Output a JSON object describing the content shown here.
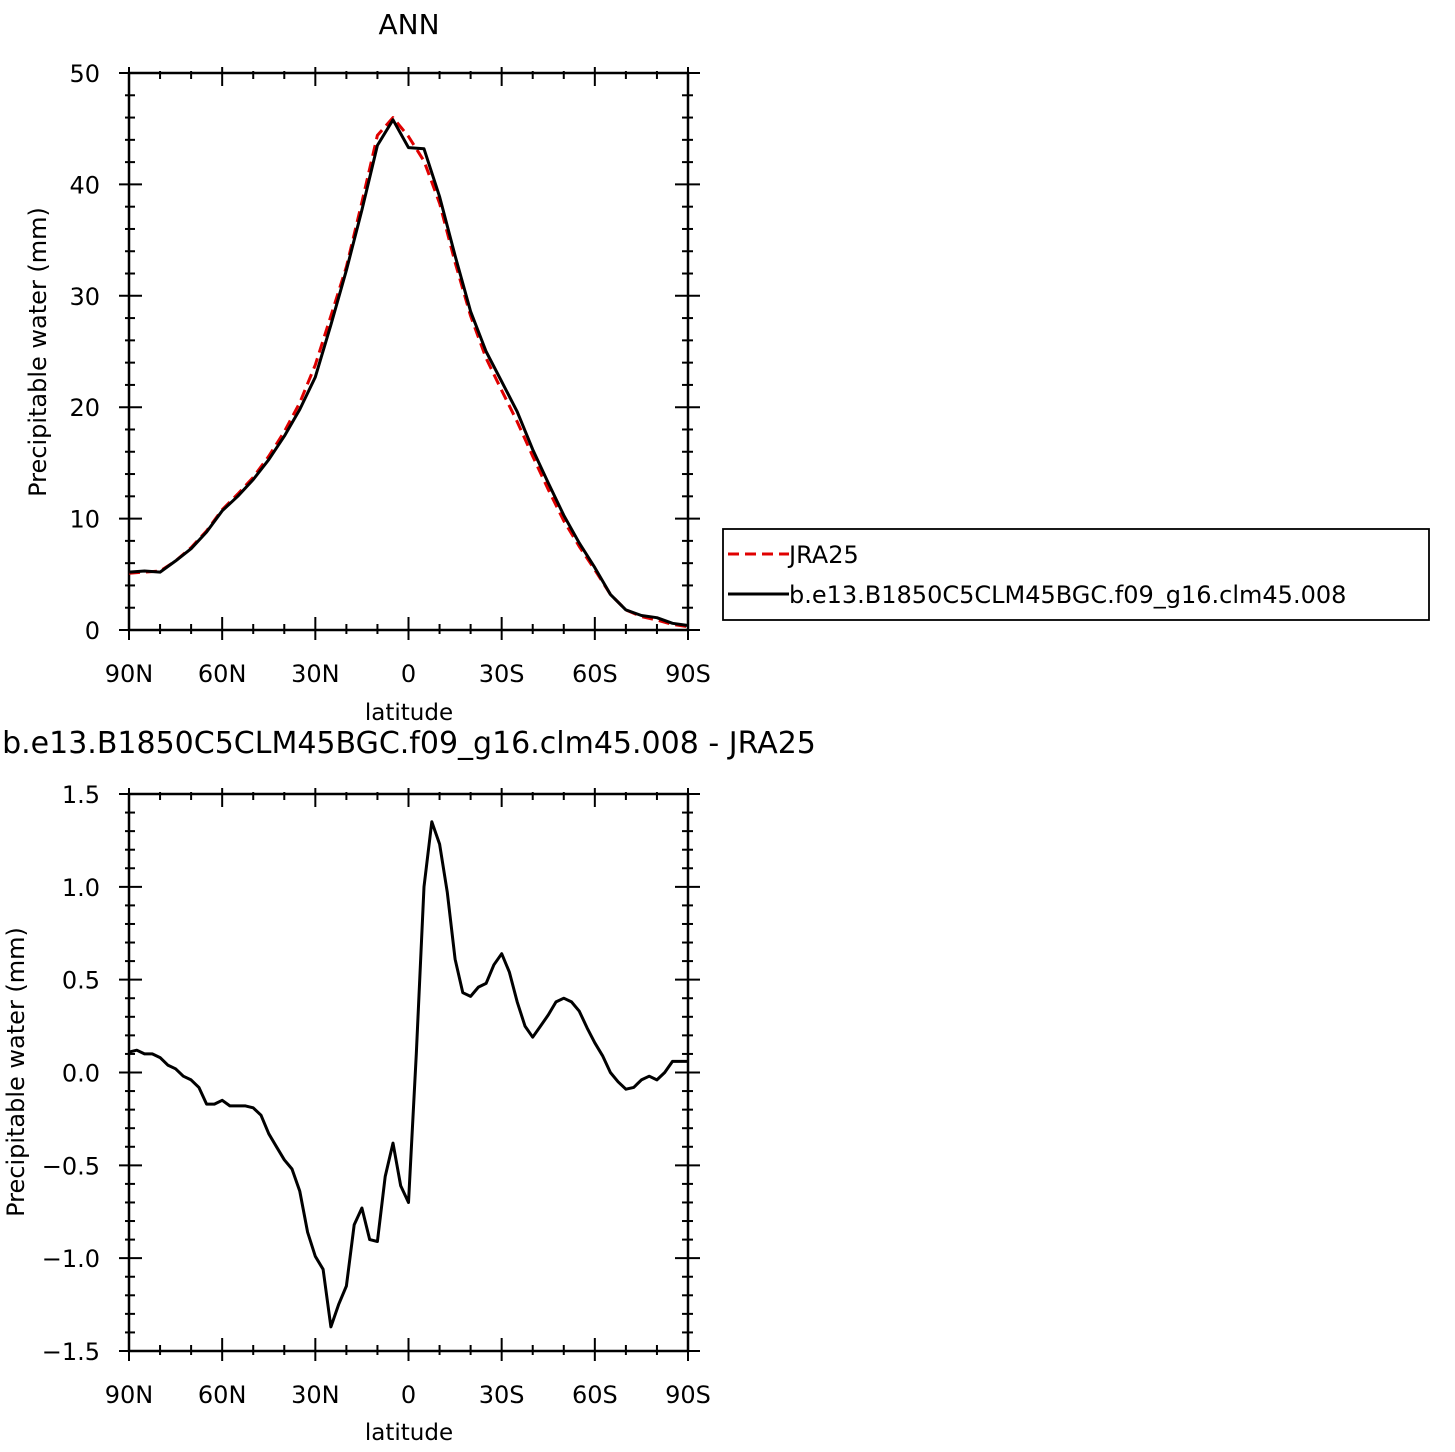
{
  "chart_data": [
    {
      "type": "line",
      "title": "ANN",
      "xlabel": "latitude",
      "ylabel": "Precipitable water (mm)",
      "xlim": [
        90,
        -90
      ],
      "ylim": [
        0,
        50
      ],
      "x_ticks": [
        90,
        60,
        30,
        0,
        -30,
        -60,
        -90
      ],
      "x_tick_labels": [
        "90N",
        "60N",
        "30N",
        "0",
        "30S",
        "60S",
        "90S"
      ],
      "y_ticks": [
        0,
        10,
        20,
        30,
        40,
        50
      ],
      "y_tick_labels": [
        "0",
        "10",
        "20",
        "30",
        "40",
        "50"
      ],
      "legend": "right",
      "series": [
        {
          "name": "JRA25",
          "color": "#e00000",
          "dash": "dashed",
          "x": [
            90,
            85,
            80,
            75,
            70,
            65,
            60,
            55,
            50,
            45,
            40,
            35,
            30,
            25,
            20,
            15,
            10,
            5,
            0,
            -5,
            -10,
            -15,
            -20,
            -25,
            -30,
            -35,
            -40,
            -45,
            -50,
            -55,
            -60,
            -65,
            -70,
            -75,
            -80,
            -85,
            -90
          ],
          "y": [
            5.1,
            5.2,
            5.3,
            6.2,
            7.4,
            8.9,
            10.8,
            12.2,
            13.7,
            15.6,
            17.8,
            20.4,
            23.8,
            28.2,
            32.6,
            38.4,
            44.4,
            46.0,
            44.3,
            42.1,
            38.3,
            33.0,
            28.2,
            24.4,
            21.5,
            18.7,
            15.6,
            12.6,
            9.8,
            7.5,
            5.4,
            3.2,
            1.8,
            1.2,
            0.9,
            0.5,
            0.3
          ]
        },
        {
          "name": "b.e13.B1850C5CLM45BGC.f09_g16.clm45.008",
          "color": "#000000",
          "dash": "solid",
          "x": [
            90,
            85,
            80,
            75,
            70,
            65,
            60,
            55,
            50,
            45,
            40,
            35,
            30,
            25,
            20,
            15,
            10,
            5,
            0,
            -5,
            -10,
            -15,
            -20,
            -25,
            -30,
            -35,
            -40,
            -45,
            -50,
            -55,
            -60,
            -65,
            -70,
            -75,
            -80,
            -85,
            -90
          ],
          "y": [
            5.2,
            5.3,
            5.2,
            6.2,
            7.3,
            8.8,
            10.7,
            12.0,
            13.5,
            15.3,
            17.4,
            19.8,
            22.7,
            27.4,
            32.3,
            37.7,
            43.5,
            45.8,
            43.3,
            43.2,
            38.9,
            33.6,
            28.6,
            25.0,
            22.3,
            19.6,
            16.2,
            13.2,
            10.3,
            7.8,
            5.6,
            3.2,
            1.8,
            1.3,
            1.1,
            0.6,
            0.4
          ]
        }
      ]
    },
    {
      "type": "line",
      "title": "b.e13.B1850C5CLM45BGC.f09_g16.clm45.008 - JRA25",
      "xlabel": "latitude",
      "ylabel": "Precipitable water (mm)",
      "xlim": [
        90,
        -90
      ],
      "ylim": [
        -1.5,
        1.5
      ],
      "x_ticks": [
        90,
        60,
        30,
        0,
        -30,
        -60,
        -90
      ],
      "x_tick_labels": [
        "90N",
        "60N",
        "30N",
        "0",
        "30S",
        "60S",
        "90S"
      ],
      "y_ticks": [
        -1.5,
        -1.0,
        -0.5,
        0.0,
        0.5,
        1.0,
        1.5
      ],
      "y_tick_labels": [
        "−1.5",
        "−1.0",
        "−0.5",
        "0.0",
        "0.5",
        "1.0",
        "1.5"
      ],
      "series": [
        {
          "color": "#000000",
          "dash": "solid",
          "x": [
            90,
            87.5,
            85,
            82.5,
            80,
            77.5,
            75,
            72.5,
            70,
            67.5,
            65,
            62.5,
            60,
            57.5,
            55,
            52.5,
            50,
            47.5,
            45,
            42.5,
            40,
            37.5,
            35,
            32.5,
            30,
            27.5,
            25,
            22.5,
            20,
            17.5,
            15,
            12.5,
            10,
            7.5,
            5,
            2.5,
            0,
            -2.5,
            -5,
            -7.5,
            -10,
            -12.5,
            -15,
            -17.5,
            -20,
            -22.5,
            -25,
            -27.5,
            -30,
            -32.5,
            -35,
            -37.5,
            -40,
            -42.5,
            -45,
            -47.5,
            -50,
            -52.5,
            -55,
            -57.5,
            -60,
            -62.5,
            -65,
            -67.5,
            -70,
            -72.5,
            -75,
            -77.5,
            -80,
            -82.5,
            -85,
            -87.5,
            -90
          ],
          "y": [
            0.11,
            0.12,
            0.1,
            0.1,
            0.08,
            0.04,
            0.02,
            -0.02,
            -0.04,
            -0.08,
            -0.17,
            -0.17,
            -0.15,
            -0.18,
            -0.18,
            -0.18,
            -0.19,
            -0.23,
            -0.33,
            -0.4,
            -0.47,
            -0.52,
            -0.64,
            -0.86,
            -0.99,
            -1.06,
            -1.37,
            -1.25,
            -1.15,
            -0.82,
            -0.73,
            -0.9,
            -0.91,
            -0.56,
            -0.38,
            -0.61,
            -0.7,
            0.1,
            1.0,
            1.35,
            1.23,
            0.97,
            0.61,
            0.43,
            0.41,
            0.46,
            0.48,
            0.58,
            0.64,
            0.54,
            0.38,
            0.25,
            0.19,
            0.25,
            0.31,
            0.38,
            0.4,
            0.38,
            0.33,
            0.24,
            0.16,
            0.09,
            0.0,
            -0.05,
            -0.09,
            -0.08,
            -0.04,
            -0.02,
            -0.04,
            0.0,
            0.06,
            0.06,
            0.06
          ]
        }
      ]
    }
  ]
}
